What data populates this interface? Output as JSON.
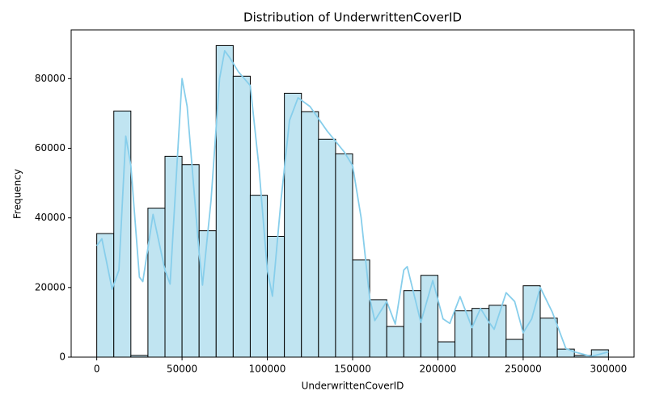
{
  "chart_data": {
    "type": "histogram",
    "title": "Distribution of UnderwrittenCoverID",
    "xlabel": "UnderwrittenCoverID",
    "ylabel": "Frequency",
    "bins": [
      0,
      10000,
      20000,
      30000,
      40000,
      50000,
      60000,
      70000,
      80000,
      90000,
      100000,
      110000,
      120000,
      130000,
      140000,
      150000,
      160000,
      170000,
      180000,
      190000,
      200000,
      210000,
      220000,
      230000,
      240000,
      250000,
      260000,
      270000,
      280000,
      290000,
      300000
    ],
    "values": [
      35500,
      70700,
      500,
      42800,
      57700,
      55300,
      36300,
      89500,
      80700,
      46500,
      34700,
      75800,
      70500,
      62600,
      58400,
      27900,
      16500,
      8800,
      19100,
      23500,
      4400,
      13300,
      14000,
      14900,
      5100,
      20500,
      11200,
      2300,
      500,
      2100
    ],
    "color": "#c0e4f1",
    "edgecolor": "#000000",
    "kde": {
      "color": "#87ceeb",
      "x": [
        0,
        3000,
        9000,
        13000,
        17000,
        20000,
        25000,
        27000,
        33000,
        40000,
        43000,
        47000,
        50000,
        53000,
        60000,
        62000,
        67000,
        72000,
        75000,
        78000,
        83000,
        90000,
        95000,
        100000,
        103000,
        108000,
        113000,
        118000,
        125000,
        135000,
        145000,
        150000,
        155000,
        160000,
        163000,
        170000,
        175000,
        180000,
        182000,
        186000,
        190000,
        197000,
        203000,
        207000,
        213000,
        220000,
        225000,
        230000,
        233000,
        240000,
        245000,
        250000,
        255000,
        260000,
        267000,
        275000,
        280000,
        290000,
        300000
      ],
      "values": [
        32000,
        34000,
        19500,
        25000,
        63500,
        55000,
        23000,
        21700,
        41000,
        25000,
        21000,
        55000,
        80000,
        72000,
        30000,
        20700,
        45000,
        80000,
        88000,
        86000,
        82000,
        78000,
        55000,
        25000,
        17500,
        45000,
        68000,
        74500,
        72000,
        65000,
        59000,
        55000,
        40000,
        17000,
        10500,
        16000,
        9500,
        25000,
        26000,
        18000,
        10000,
        22000,
        11000,
        9700,
        17400,
        8500,
        14000,
        10000,
        8000,
        18500,
        16000,
        7000,
        11000,
        20000,
        13000,
        2500,
        1500,
        200,
        1500
      ]
    },
    "xlim": [
      -15000,
      315000
    ],
    "ylim": [
      0,
      94000
    ],
    "xticks": [
      0,
      50000,
      100000,
      150000,
      200000,
      250000,
      300000
    ],
    "yticks": [
      0,
      20000,
      40000,
      60000,
      80000
    ]
  }
}
